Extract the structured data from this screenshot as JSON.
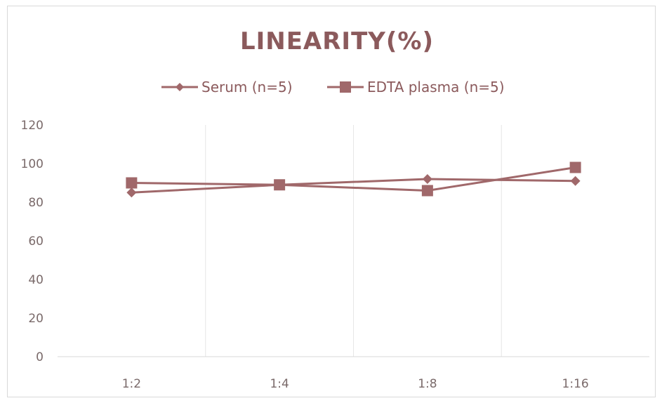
{
  "chart_data": {
    "type": "line",
    "title": "LINEARITY(%)",
    "categories": [
      "1:2",
      "1:4",
      "1:8",
      "1:16"
    ],
    "series": [
      {
        "name": "Serum (n=5)",
        "values": [
          85,
          89,
          92,
          91
        ],
        "marker": "diamond",
        "color": "#a0686a"
      },
      {
        "name": "EDTA plasma (n=5)",
        "values": [
          90,
          89,
          86,
          98
        ],
        "marker": "square",
        "color": "#a0686a"
      }
    ],
    "yticks": [
      0,
      20,
      40,
      60,
      80,
      100,
      120
    ],
    "ylim": [
      0,
      120
    ],
    "xlabel": "",
    "ylabel": "",
    "grid": "vertical",
    "legend_position": "top"
  }
}
